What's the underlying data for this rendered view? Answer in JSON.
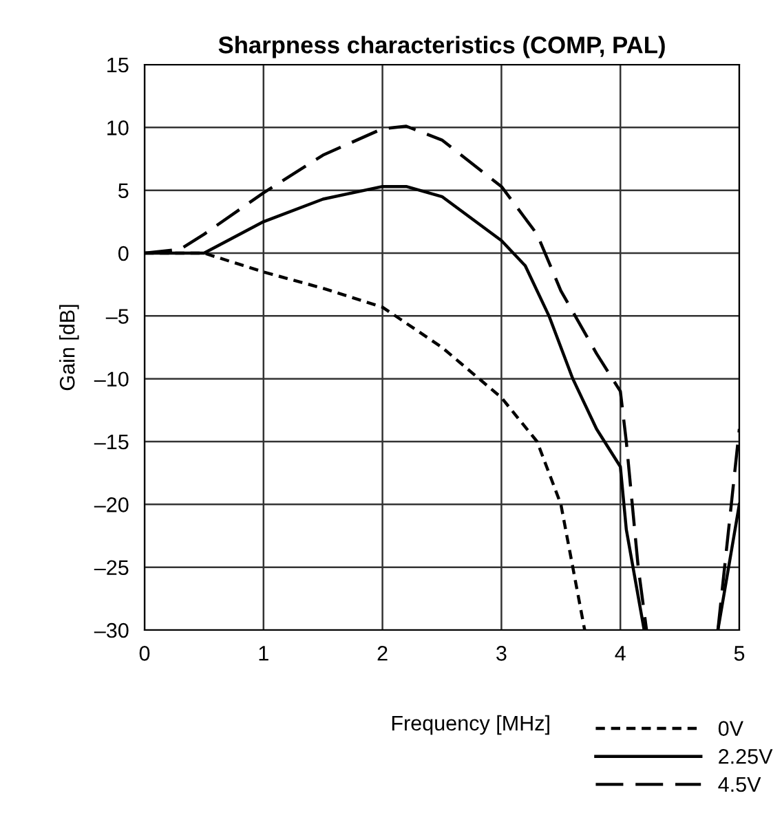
{
  "chart_data": {
    "type": "line",
    "title": "Sharpness characteristics (COMP, PAL)",
    "xlabel": "Frequency [MHz]",
    "ylabel": "Gain [dB]",
    "xlim": [
      0,
      5
    ],
    "ylim": [
      -30,
      15
    ],
    "xticks": [
      0,
      1,
      2,
      3,
      4,
      5
    ],
    "yticks": [
      {
        "value": 15,
        "label": "15"
      },
      {
        "value": 10,
        "label": "10"
      },
      {
        "value": 5,
        "label": "5"
      },
      {
        "value": 0,
        "label": "0"
      },
      {
        "value": -5,
        "label": "–5"
      },
      {
        "value": -10,
        "label": "–10"
      },
      {
        "value": -15,
        "label": "–15"
      },
      {
        "value": -20,
        "label": "–20"
      },
      {
        "value": -25,
        "label": "–25"
      },
      {
        "value": -30,
        "label": "–30"
      }
    ],
    "grid": true,
    "legend": "bottom right",
    "marker": "none",
    "series": [
      {
        "name": "0V",
        "color": "#000000",
        "line_style": "dotted",
        "x": [
          0,
          0.5,
          1,
          1.5,
          2,
          2.5,
          3,
          3.3,
          3.5,
          3.6,
          3.7
        ],
        "values": [
          0,
          0,
          -1.5,
          -2.8,
          -4.3,
          -7.5,
          -11.5,
          -15,
          -20,
          -25,
          -30
        ]
      },
      {
        "name": "2.25V",
        "color": "#000000",
        "line_style": "solid",
        "x": [
          0,
          0.5,
          1,
          1.5,
          2,
          2.2,
          2.5,
          3,
          3.2,
          3.4,
          3.6,
          3.8,
          4,
          4.05,
          4.2,
          4.5,
          4.82,
          5
        ],
        "values": [
          0,
          0,
          2.5,
          4.3,
          5.3,
          5.3,
          4.5,
          1,
          -1,
          -5,
          -10,
          -14,
          -17,
          -22,
          -30,
          null,
          -30,
          -20
        ]
      },
      {
        "name": "4.5V",
        "color": "#000000",
        "line_style": "dashed",
        "x": [
          0,
          0.3,
          0.5,
          1,
          1.5,
          2,
          2.2,
          2.5,
          3,
          3.3,
          3.5,
          3.8,
          4,
          4.05,
          4.1,
          4.15,
          4.22,
          4.5,
          4.82,
          5
        ],
        "values": [
          0,
          0.3,
          1.5,
          4.8,
          7.8,
          9.9,
          10.1,
          9,
          5.3,
          1.5,
          -3,
          -8,
          -11,
          -15,
          -20,
          -25,
          -30,
          null,
          -30,
          -14
        ]
      }
    ]
  }
}
